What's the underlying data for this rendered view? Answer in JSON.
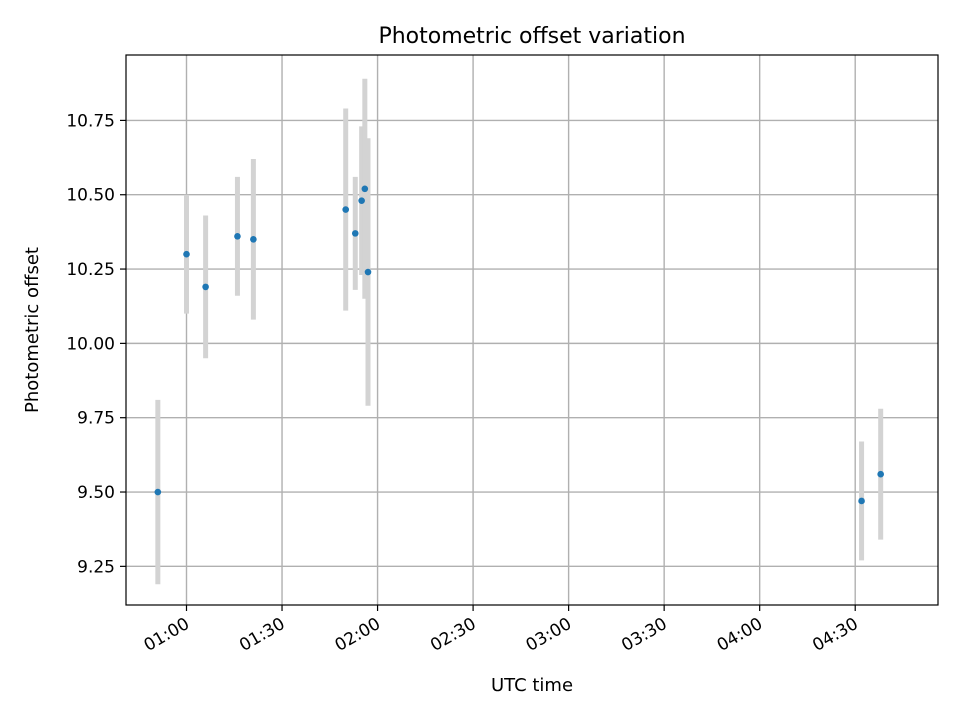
{
  "chart_data": {
    "type": "scatter",
    "title": "Photometric offset variation",
    "xlabel": "UTC time",
    "ylabel": "Photometric offset",
    "xlim": [
      "00:41",
      "04:56"
    ],
    "ylim": [
      9.12,
      10.97
    ],
    "x_tick_labels": [
      "01:00",
      "01:30",
      "02:00",
      "02:30",
      "03:00",
      "03:30",
      "04:00",
      "04:30"
    ],
    "x_ticks": [
      "01:00",
      "01:30",
      "02:00",
      "02:30",
      "03:00",
      "03:30",
      "04:00",
      "04:30"
    ],
    "y_ticks": [
      9.25,
      9.5,
      9.75,
      10.0,
      10.25,
      10.5,
      10.75
    ],
    "y_tick_labels": [
      "9.25",
      "9.50",
      "9.75",
      "10.00",
      "10.25",
      "10.50",
      "10.75"
    ],
    "grid": true,
    "point_color": "#1f77b4",
    "error_bar_color": "#d3d3d3",
    "series": [
      {
        "points": [
          {
            "time": "00:51",
            "value": 9.5,
            "err": 0.31
          },
          {
            "time": "01:00",
            "value": 10.3,
            "err": 0.2
          },
          {
            "time": "01:06",
            "value": 10.19,
            "err": 0.24
          },
          {
            "time": "01:16",
            "value": 10.36,
            "err": 0.2
          },
          {
            "time": "01:21",
            "value": 10.35,
            "err": 0.27
          },
          {
            "time": "01:50",
            "value": 10.45,
            "err": 0.34
          },
          {
            "time": "01:53",
            "value": 10.37,
            "err": 0.19
          },
          {
            "time": "01:55",
            "value": 10.48,
            "err": 0.25
          },
          {
            "time": "01:56",
            "value": 10.52,
            "err": 0.37
          },
          {
            "time": "01:57",
            "value": 10.24,
            "err": 0.45
          },
          {
            "time": "04:32",
            "value": 9.47,
            "err": 0.2
          },
          {
            "time": "04:38",
            "value": 9.56,
            "err": 0.22
          }
        ]
      }
    ]
  }
}
